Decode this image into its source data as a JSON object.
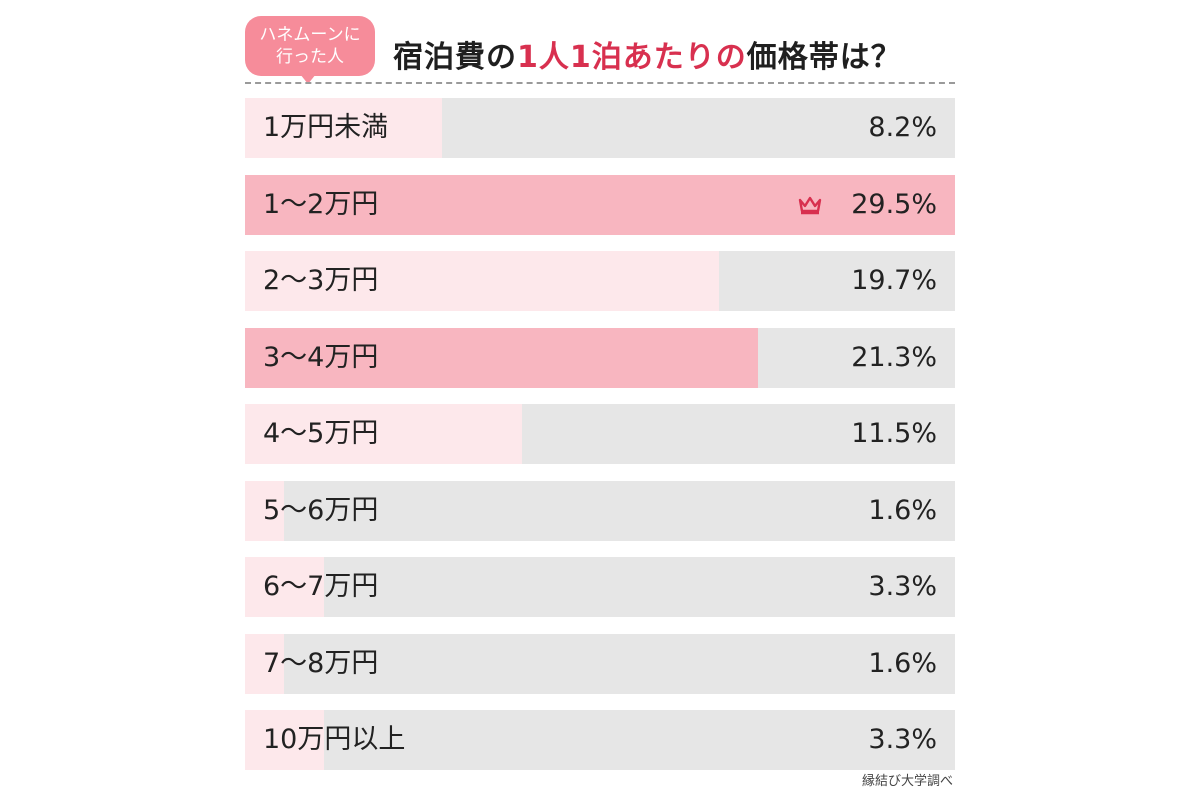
{
  "header": {
    "badge": "ハネムーンに\n行った人",
    "title_pre": "宿泊費の",
    "title_highlight": "1人1泊あたりの",
    "title_post": "価格帯は？"
  },
  "source": "縁結び大学調べ",
  "colors": {
    "bar_fill": "#fde8eb",
    "bar_fill_top": "#f8b6c0",
    "bar_background": "#e6e6e6",
    "accent": "#d8304f",
    "badge": "#f68c9a"
  },
  "icons": {
    "top_marker": "crown-icon"
  },
  "chart_data": {
    "type": "bar",
    "orientation": "horizontal",
    "title": "宿泊費の1人1泊あたりの価格帯は？",
    "categories": [
      "1万円未満",
      "1〜2万円",
      "2〜3万円",
      "3〜4万円",
      "4〜5万円",
      "5〜6万円",
      "6〜7万円",
      "7〜8万円",
      "10万円以上"
    ],
    "values": [
      8.2,
      29.5,
      19.7,
      21.3,
      11.5,
      1.6,
      3.3,
      1.6,
      3.3
    ],
    "value_labels": [
      "8.2%",
      "29.5%",
      "19.7%",
      "21.3%",
      "11.5%",
      "1.6%",
      "3.3%",
      "1.6%",
      "3.3%"
    ],
    "highlighted": [
      false,
      true,
      false,
      true,
      false,
      false,
      false,
      false,
      false
    ],
    "top_marker_index": 1,
    "unit": "%",
    "xlim": [
      0,
      29.5
    ]
  }
}
